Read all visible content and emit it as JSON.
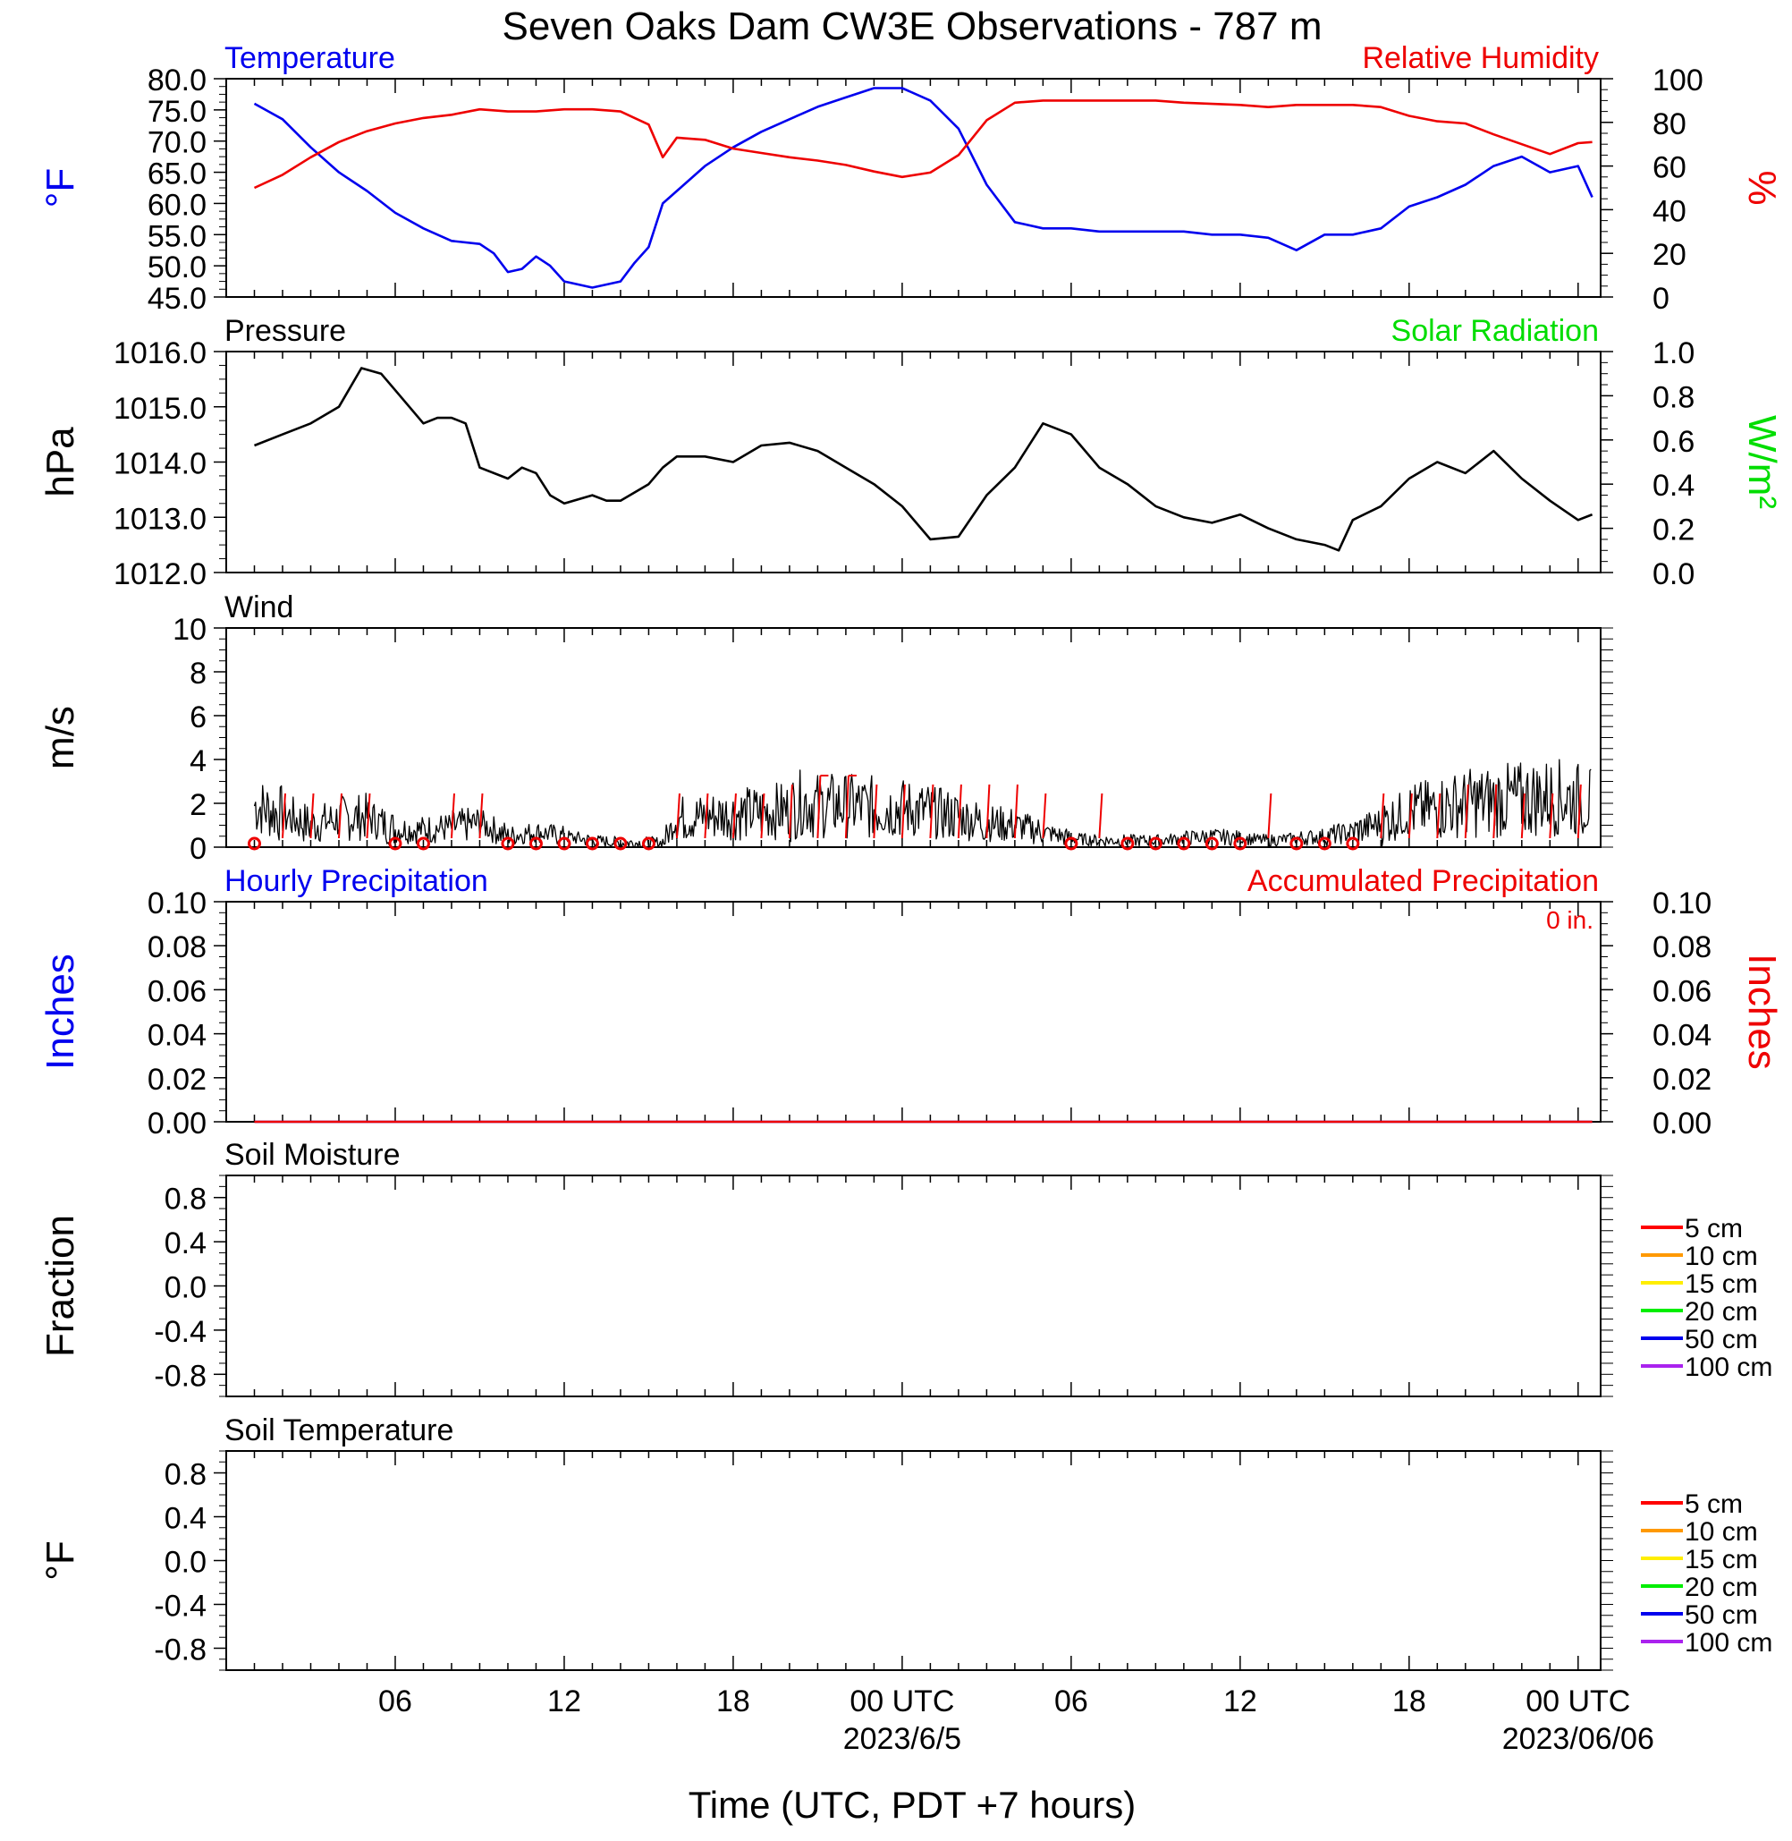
{
  "title": "Seven Oaks Dam CW3E Observations - 787 m",
  "x_axis": {
    "label": "Time (UTC, PDT +7 hours)",
    "ticks": [
      {
        "hour": 6,
        "label": "06",
        "sub": ""
      },
      {
        "hour": 12,
        "label": "12",
        "sub": ""
      },
      {
        "hour": 18,
        "label": "18",
        "sub": ""
      },
      {
        "hour": 24,
        "label": "00 UTC",
        "sub": "2023/6/5"
      },
      {
        "hour": 30,
        "label": "06",
        "sub": ""
      },
      {
        "hour": 36,
        "label": "12",
        "sub": ""
      },
      {
        "hour": 42,
        "label": "18",
        "sub": ""
      },
      {
        "hour": 48,
        "label": "00 UTC",
        "sub": "2023/06/06"
      }
    ]
  },
  "colors": {
    "temperature": "#0000ee",
    "humidity": "#ee0000",
    "solar": "#00dd00",
    "pressure": "#000000",
    "wind": "#000000",
    "barb": "#ee0000"
  },
  "chart_data": [
    {
      "id": "temp",
      "type": "line",
      "left_title": "Temperature",
      "right_title": "Relative Humidity",
      "left_label": "°F",
      "right_label": "%",
      "left_ylim": [
        45,
        80
      ],
      "left_ticks": [
        "80.0",
        "75.0",
        "70.0",
        "65.0",
        "60.0",
        "55.0",
        "50.0",
        "45.0"
      ],
      "right_ylim": [
        0,
        100
      ],
      "right_ticks": [
        "100",
        "80",
        "60",
        "40",
        "20",
        "0"
      ],
      "series": [
        {
          "name": "Temperature",
          "axis": "left",
          "color": "#0000ee",
          "x": [
            1,
            2,
            3,
            4,
            5,
            6,
            7,
            8,
            9,
            9.5,
            10,
            10.5,
            11,
            11.5,
            12,
            13,
            14,
            14.5,
            15,
            15.5,
            16,
            17,
            18,
            19,
            20,
            21,
            22,
            23,
            24,
            25,
            26,
            27,
            28,
            29,
            30,
            31,
            32,
            33,
            34,
            35,
            36,
            37,
            38,
            39,
            40,
            40.5,
            41,
            42,
            43,
            44,
            45,
            46,
            47,
            48,
            48.5
          ],
          "y": [
            76,
            73.5,
            69,
            65,
            62,
            58.5,
            56,
            54,
            53.5,
            52,
            49,
            49.5,
            51.5,
            50,
            47.5,
            46.5,
            47.5,
            50.5,
            53,
            60,
            62,
            66,
            69,
            71.5,
            73.5,
            75.5,
            77,
            78.5,
            78.5,
            76.5,
            72,
            63,
            57,
            56,
            56,
            55.5,
            55.5,
            55.5,
            55.5,
            55,
            55,
            54.5,
            52.5,
            55,
            55,
            55.5,
            56,
            59.5,
            61,
            63,
            66,
            67.5,
            65,
            66,
            61
          ]
        },
        {
          "name": "Relative Humidity",
          "axis": "right",
          "color": "#ee0000",
          "x": [
            1,
            2,
            3,
            4,
            5,
            6,
            7,
            8,
            9,
            10,
            11,
            12,
            13,
            14,
            14.5,
            15,
            15.5,
            16,
            17,
            18,
            19,
            20,
            21,
            22,
            23,
            24,
            25,
            26,
            27,
            28,
            29,
            30,
            31,
            32,
            33,
            34,
            35,
            36,
            37,
            38,
            39,
            40,
            41,
            42,
            43,
            44,
            45,
            46,
            47,
            48,
            48.5
          ],
          "y": [
            50,
            56,
            64,
            71,
            76,
            79.5,
            82,
            83.5,
            86,
            85,
            85,
            86,
            86,
            85,
            82,
            79,
            64,
            73,
            72,
            68,
            66,
            64,
            62.5,
            60.5,
            57.5,
            55,
            57,
            65,
            81,
            89,
            90,
            90,
            90,
            90,
            90,
            89,
            88.5,
            88,
            87,
            88,
            88,
            88,
            87,
            83,
            80.5,
            79.5,
            74.5,
            70,
            65.5,
            70.5,
            71
          ]
        }
      ]
    },
    {
      "id": "pressure",
      "type": "line",
      "left_title": "Pressure",
      "right_title": "Solar Radiation",
      "left_label": "hPa",
      "right_label": "W/m²",
      "left_ylim": [
        1012,
        1016
      ],
      "left_ticks": [
        "1016.0",
        "1015.0",
        "1014.0",
        "1013.0",
        "1012.0"
      ],
      "right_ylim": [
        0,
        1
      ],
      "right_ticks": [
        "1.0",
        "0.8",
        "0.6",
        "0.4",
        "0.2",
        "0.0"
      ],
      "series": [
        {
          "name": "Pressure",
          "axis": "left",
          "color": "#000000",
          "x": [
            1,
            2,
            3,
            4,
            4.8,
            5.5,
            6,
            7,
            7.5,
            8,
            8.5,
            9,
            10,
            10.5,
            11,
            11.5,
            12,
            13,
            13.5,
            14,
            15,
            15.5,
            16,
            17,
            18,
            19,
            20,
            21,
            22,
            23,
            24,
            25,
            26,
            27,
            28,
            29,
            30,
            31,
            32,
            33,
            34,
            35,
            36,
            37,
            38,
            39,
            39.5,
            40,
            41,
            42,
            43,
            44,
            45,
            46,
            47,
            48,
            48.5
          ],
          "y": [
            1014.3,
            1014.5,
            1014.7,
            1015.0,
            1015.7,
            1015.6,
            1015.3,
            1014.7,
            1014.8,
            1014.8,
            1014.7,
            1013.9,
            1013.7,
            1013.9,
            1013.8,
            1013.4,
            1013.25,
            1013.4,
            1013.3,
            1013.3,
            1013.6,
            1013.9,
            1014.1,
            1014.1,
            1014.0,
            1014.3,
            1014.35,
            1014.2,
            1013.9,
            1013.6,
            1013.2,
            1012.6,
            1012.65,
            1013.4,
            1013.9,
            1014.7,
            1014.5,
            1013.9,
            1013.6,
            1013.2,
            1013.0,
            1012.9,
            1013.05,
            1012.8,
            1012.6,
            1012.5,
            1012.4,
            1012.95,
            1013.2,
            1013.7,
            1014.0,
            1013.8,
            1014.2,
            1013.7,
            1013.3,
            1012.95,
            1013.05
          ]
        }
      ]
    },
    {
      "id": "wind",
      "type": "line",
      "left_title": "Wind",
      "left_label": "m/s",
      "left_ylim": [
        0,
        10
      ],
      "left_ticks": [
        "10",
        "8",
        "6",
        "4",
        "2",
        "0"
      ],
      "series": [
        {
          "name": "Wind speed",
          "axis": "left",
          "color": "#000000",
          "x": [
            1,
            2,
            3,
            4,
            5,
            6,
            7,
            8,
            9,
            10,
            11,
            12,
            13,
            14,
            15,
            15.5,
            16,
            17,
            18,
            19,
            20,
            20.5,
            21,
            22,
            23,
            24,
            25,
            26,
            27,
            28,
            29,
            30,
            31,
            32,
            33,
            34,
            35,
            36,
            37,
            38,
            39,
            40,
            41,
            42,
            43,
            44,
            45,
            46,
            47,
            48,
            48.5
          ],
          "y": [
            1.9,
            1.5,
            1.0,
            1.3,
            1.4,
            0.8,
            0.8,
            0.9,
            1.1,
            0.5,
            0.7,
            0.5,
            0.3,
            0.2,
            0.2,
            0.2,
            1.3,
            1.4,
            1.5,
            1.6,
            1.7,
            2.1,
            1.9,
            1.9,
            1.8,
            1.8,
            1.6,
            1.4,
            1.1,
            1.0,
            0.7,
            0.4,
            0.3,
            0.3,
            0.3,
            0.4,
            0.5,
            0.4,
            0.3,
            0.4,
            0.5,
            0.7,
            1.1,
            1.6,
            1.8,
            2.0,
            2.1,
            2.2,
            2.3,
            2.2,
            2.0
          ]
        },
        {
          "name": "Wind barbs",
          "type": "barbs",
          "color": "#ee0000",
          "hours": [
            1,
            2,
            3,
            4,
            5,
            6,
            7,
            8,
            9,
            10,
            11,
            12,
            13,
            14,
            15,
            16,
            17,
            18,
            19,
            20,
            21,
            22,
            23,
            24,
            25,
            26,
            27,
            28,
            29,
            30,
            31,
            32,
            33,
            34,
            35,
            36,
            37,
            38,
            39,
            40,
            41,
            42,
            43,
            44,
            45,
            46,
            47,
            48
          ],
          "speeds": [
            0,
            2,
            2,
            2,
            2,
            0,
            0,
            2,
            2,
            0,
            0.4,
            0.3,
            0,
            0,
            0,
            2,
            2,
            2,
            2,
            3,
            4,
            4,
            3,
            3,
            3,
            3,
            3,
            3,
            2,
            0,
            2,
            0,
            0,
            0,
            0,
            0,
            2,
            0,
            0,
            0,
            2,
            2,
            2,
            3,
            3,
            2,
            2,
            3
          ]
        }
      ]
    },
    {
      "id": "precip",
      "type": "line",
      "left_title": "Hourly Precipitation",
      "right_title": "Accumulated Precipitation",
      "right_note": "0 in.",
      "left_label": "Inches",
      "right_label": "Inches",
      "left_ylim": [
        0,
        0.1
      ],
      "left_ticks": [
        "0.10",
        "0.08",
        "0.06",
        "0.04",
        "0.02",
        "0.00"
      ],
      "right_ylim": [
        0,
        0.1
      ],
      "right_ticks": [
        "0.10",
        "0.08",
        "0.06",
        "0.04",
        "0.02",
        "0.00"
      ],
      "series": [
        {
          "name": "Hourly Precipitation",
          "axis": "left",
          "color": "#0000ee",
          "x": [
            1,
            48.5
          ],
          "y": [
            0,
            0
          ]
        },
        {
          "name": "Accumulated Precipitation",
          "axis": "right",
          "color": "#ee0000",
          "x": [
            1,
            48.5
          ],
          "y": [
            0,
            0
          ]
        }
      ]
    },
    {
      "id": "soilm",
      "type": "line",
      "left_title": "Soil Moisture",
      "left_label": "Fraction",
      "left_ylim": [
        -1,
        1
      ],
      "left_ticks": [
        "0.8",
        "0.4",
        "0.0",
        "-0.4",
        "-0.8"
      ],
      "series": [],
      "legend": [
        {
          "label": "5 cm",
          "color": "#ff0000"
        },
        {
          "label": "10 cm",
          "color": "#ff9900"
        },
        {
          "label": "15 cm",
          "color": "#ffee00"
        },
        {
          "label": "20 cm",
          "color": "#00ee00"
        },
        {
          "label": "50 cm",
          "color": "#0000ee"
        },
        {
          "label": "100 cm",
          "color": "#aa22ee"
        }
      ]
    },
    {
      "id": "soilt",
      "type": "line",
      "left_title": "Soil Temperature",
      "left_label": "°F",
      "left_ylim": [
        -1,
        1
      ],
      "left_ticks": [
        "0.8",
        "0.4",
        "0.0",
        "-0.4",
        "-0.8"
      ],
      "series": [],
      "legend": [
        {
          "label": "5 cm",
          "color": "#ff0000"
        },
        {
          "label": "10 cm",
          "color": "#ff9900"
        },
        {
          "label": "15 cm",
          "color": "#ffee00"
        },
        {
          "label": "20 cm",
          "color": "#00ee00"
        },
        {
          "label": "50 cm",
          "color": "#0000ee"
        },
        {
          "label": "100 cm",
          "color": "#aa22ee"
        }
      ]
    }
  ]
}
